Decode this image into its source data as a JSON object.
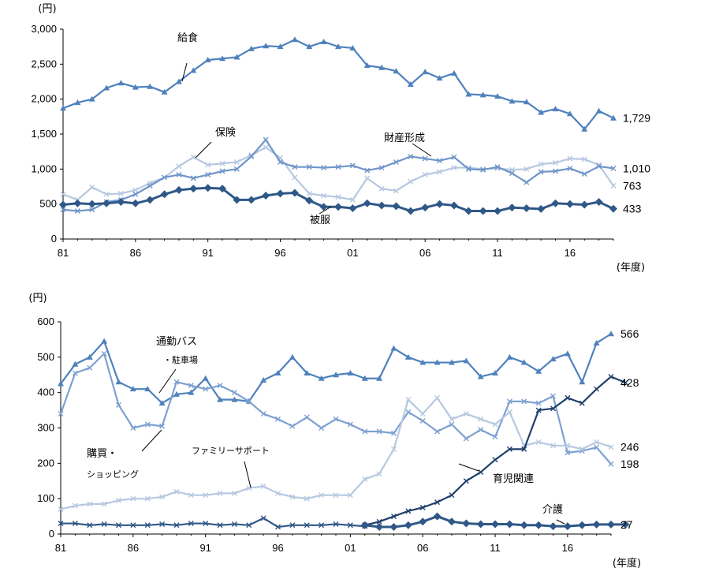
{
  "chart_data": [
    {
      "type": "line",
      "yunit": "(円)",
      "xunit": "(年度)",
      "ylim": [
        0,
        3000
      ],
      "yticks": [
        "0",
        "500",
        "1,000",
        "1,500",
        "2,000",
        "2,500",
        "3,000"
      ],
      "xticks": [
        "81",
        "86",
        "91",
        "96",
        "01",
        "06",
        "11",
        "16"
      ],
      "x_start": 1981,
      "grid": false,
      "series": [
        {
          "name": "給食",
          "color": "#4f81bd",
          "marker": "triangle",
          "end_label": "1,729",
          "values": [
            1870,
            1950,
            2000,
            2160,
            2230,
            2170,
            2180,
            2100,
            2250,
            2410,
            2560,
            2580,
            2600,
            2720,
            2760,
            2750,
            2850,
            2750,
            2820,
            2750,
            2730,
            2480,
            2450,
            2400,
            2210,
            2390,
            2300,
            2370,
            2070,
            2060,
            2040,
            1970,
            1960,
            1810,
            1860,
            1790,
            1570,
            1830,
            1729
          ]
        },
        {
          "name": "保険",
          "color": "#b7c8e0",
          "marker": "x",
          "end_label": "763",
          "values": [
            640,
            560,
            740,
            640,
            650,
            700,
            800,
            880,
            1040,
            1170,
            1060,
            1080,
            1100,
            1200,
            1310,
            1160,
            880,
            650,
            620,
            600,
            560,
            870,
            720,
            690,
            820,
            920,
            960,
            1020,
            1020,
            1000,
            1010,
            990,
            1000,
            1070,
            1090,
            1150,
            1140,
            1060,
            763
          ]
        },
        {
          "name": "財産形成",
          "color": "#6f95c9",
          "marker": "x",
          "end_label": "1,010",
          "values": [
            420,
            400,
            420,
            530,
            560,
            640,
            760,
            880,
            920,
            870,
            920,
            970,
            1000,
            1180,
            1420,
            1100,
            1030,
            1030,
            1020,
            1030,
            1050,
            980,
            1020,
            1100,
            1180,
            1150,
            1120,
            1170,
            1000,
            990,
            1030,
            940,
            810,
            960,
            970,
            1010,
            930,
            1040,
            1010
          ]
        },
        {
          "name": "被服",
          "color": "#2f5887",
          "marker": "diamond",
          "end_label": "433",
          "values": [
            490,
            510,
            500,
            510,
            530,
            510,
            560,
            640,
            700,
            720,
            730,
            720,
            560,
            560,
            620,
            650,
            660,
            550,
            460,
            460,
            440,
            510,
            480,
            470,
            400,
            450,
            500,
            480,
            400,
            400,
            400,
            450,
            440,
            430,
            510,
            500,
            490,
            530,
            433
          ]
        }
      ]
    },
    {
      "type": "line",
      "yunit": "(円)",
      "xunit": "(年度)",
      "ylim": [
        0,
        600
      ],
      "yticks": [
        "0",
        "100",
        "200",
        "300",
        "400",
        "500",
        "600"
      ],
      "xticks": [
        "81",
        "86",
        "91",
        "96",
        "01",
        "06",
        "11",
        "16"
      ],
      "x_start": 1981,
      "grid": false,
      "series": [
        {
          "name": "通勤バス・駐車場",
          "color": "#4f81bd",
          "marker": "triangle",
          "end_label": "566",
          "values": [
            425,
            480,
            500,
            545,
            430,
            410,
            410,
            370,
            395,
            400,
            440,
            380,
            380,
            375,
            435,
            455,
            500,
            455,
            440,
            450,
            455,
            440,
            440,
            525,
            500,
            485,
            485,
            485,
            490,
            445,
            455,
            500,
            485,
            460,
            495,
            510,
            430,
            540,
            566
          ]
        },
        {
          "name": "購買・ショッピング",
          "color": "#7ea1d1",
          "marker": "x",
          "end_label": "198",
          "values": [
            340,
            455,
            470,
            510,
            365,
            300,
            310,
            305,
            430,
            420,
            410,
            420,
            400,
            375,
            340,
            325,
            305,
            330,
            300,
            325,
            310,
            290,
            290,
            285,
            345,
            320,
            290,
            310,
            270,
            295,
            275,
            375,
            375,
            370,
            390,
            230,
            235,
            245,
            198
          ]
        },
        {
          "name": "ファミリーサポート",
          "color": "#b7c8e0",
          "marker": "x",
          "end_label": "246",
          "values": [
            70,
            80,
            85,
            85,
            95,
            100,
            100,
            105,
            120,
            110,
            110,
            115,
            115,
            130,
            135,
            115,
            105,
            100,
            110,
            110,
            110,
            155,
            170,
            240,
            380,
            340,
            385,
            325,
            340,
            325,
            310,
            345,
            250,
            260,
            250,
            250,
            240,
            260,
            246
          ]
        },
        {
          "name": "育児関連",
          "color": "#1f3f6b",
          "marker": "x",
          "end_label": "428",
          "start_index": 21,
          "values": [
            25,
            35,
            50,
            65,
            75,
            90,
            110,
            150,
            175,
            210,
            240,
            240,
            350,
            355,
            385,
            370,
            410,
            445,
            428
          ]
        },
        {
          "name": "介護",
          "color": "#2f5887",
          "marker": "diamond",
          "end_label": "27",
          "start_index": 21,
          "values": [
            25,
            20,
            20,
            25,
            35,
            50,
            35,
            30,
            28,
            28,
            28,
            25,
            25,
            22,
            22,
            25,
            27,
            27,
            27
          ]
        },
        {
          "name": "",
          "color": "#2f5887",
          "marker": "x",
          "end_label": "",
          "values": [
            30,
            30,
            25,
            28,
            25,
            25,
            25,
            28,
            25,
            30,
            30,
            25,
            28,
            25,
            45,
            20,
            25,
            25,
            25,
            28,
            25,
            22
          ]
        }
      ]
    }
  ]
}
